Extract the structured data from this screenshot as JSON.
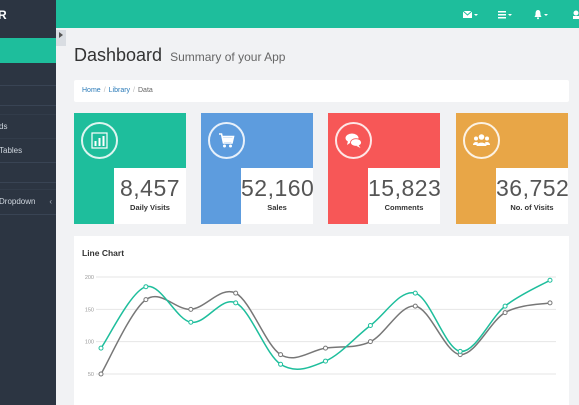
{
  "brand": {
    "letter": "R"
  },
  "sidebar": {
    "items": [
      {
        "label": "ds",
        "caret": ""
      },
      {
        "label": "Tables",
        "caret": ""
      },
      {
        "label": "Dropdown",
        "caret": "‹"
      }
    ]
  },
  "header": {
    "title": "Dashboard",
    "subtitle": "Summary of your App"
  },
  "breadcrumb": {
    "home": "Home",
    "library": "Library",
    "current": "Data"
  },
  "stats": [
    {
      "value": "8,457",
      "label": "Daily Visits",
      "color": "#1ebe9c",
      "icon": "bar-chart-icon"
    },
    {
      "value": "52,160",
      "label": "Sales",
      "color": "#5d9cde",
      "icon": "cart-icon"
    },
    {
      "value": "15,823",
      "label": "Comments",
      "color": "#f75757",
      "icon": "comments-icon"
    },
    {
      "value": "36,752",
      "label": "No. of Visits",
      "color": "#e8a647",
      "icon": "users-icon"
    }
  ],
  "line_chart_title": "Line Chart",
  "chart_data": {
    "type": "line",
    "title": "Line Chart",
    "ylim": [
      50,
      200
    ],
    "yticks": [
      50,
      100,
      150,
      200
    ],
    "grid": true,
    "series": [
      {
        "color": "#1ebe9c",
        "values": [
          90,
          185,
          130,
          160,
          65,
          70,
          125,
          175,
          85,
          155,
          195
        ]
      },
      {
        "color": "#777777",
        "values": [
          50,
          165,
          150,
          175,
          80,
          90,
          100,
          155,
          80,
          145,
          160
        ]
      }
    ]
  }
}
